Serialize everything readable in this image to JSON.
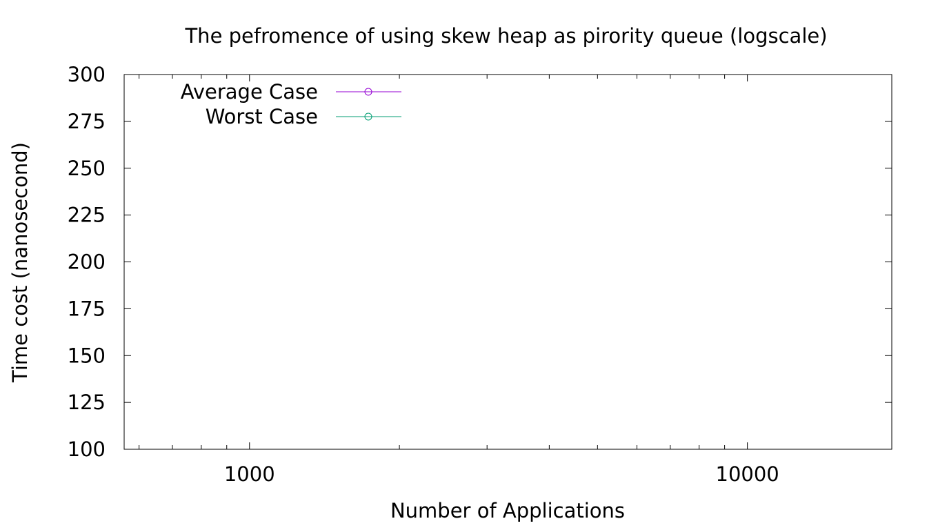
{
  "chart_data": {
    "type": "line",
    "title": "The pefromence of using skew heap as pirority queue (logscale)",
    "xlabel": "Number of Applications",
    "ylabel": "Time cost (nanosecond)",
    "x_scale": "log",
    "xlim": [
      560,
      19500
    ],
    "ylim": [
      100,
      300
    ],
    "x_ticks": [
      1000,
      10000
    ],
    "x_tick_labels": [
      "1000",
      "10000"
    ],
    "y_ticks": [
      100,
      125,
      150,
      175,
      200,
      225,
      250,
      275,
      300
    ],
    "y_tick_labels": [
      "100",
      "125",
      "150",
      "175",
      "200",
      "225",
      "250",
      "275",
      "300"
    ],
    "grid": false,
    "legend_position": "top-left",
    "series": [
      {
        "name": "Average Case",
        "color": "#9400d3",
        "marker": "open-circle",
        "x": [],
        "y": []
      },
      {
        "name": "Worst Case",
        "color": "#009e73",
        "marker": "open-circle",
        "x": [],
        "y": []
      }
    ]
  }
}
